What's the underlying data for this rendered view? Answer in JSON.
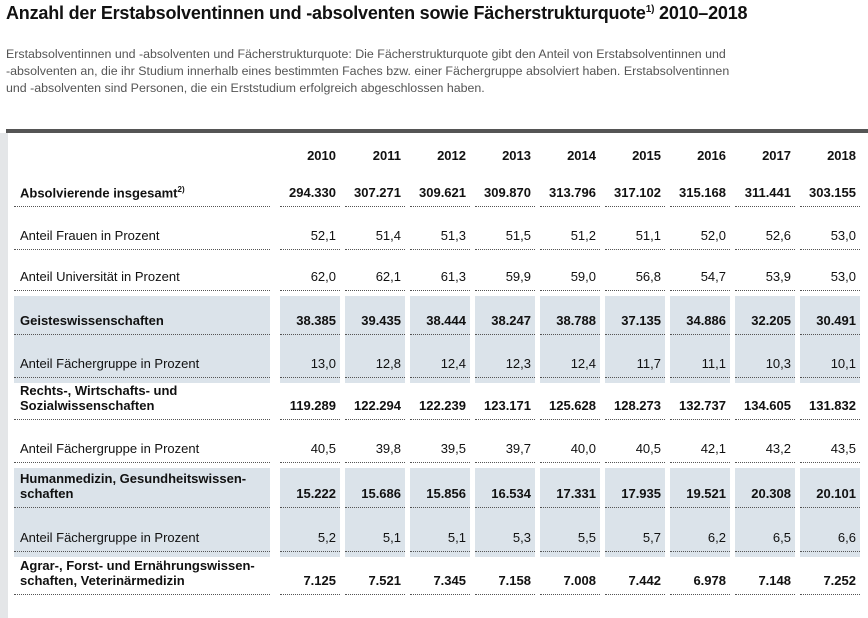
{
  "title": {
    "text": "Anzahl der Erstabsolventinnen und -absolventen sowie Fächerstrukturquote",
    "footnote": "1)",
    "years": "2010–2018"
  },
  "description": [
    "Erstabsolventinnen und -absolventen und Fächerstrukturquote: Die Fächerstrukturquote gibt den Anteil von Erstabsolventinnen und",
    "-absolventen an, die ihr Studium innerhalb eines bestimmten Faches bzw. einer Fächergruppe absolviert haben. Erstabsolventinnen",
    "und -absolventen sind Personen, die ein Erststudium erfolgreich abgeschlossen haben."
  ],
  "table": {
    "columns": [
      "2010",
      "2011",
      "2012",
      "2013",
      "2014",
      "2015",
      "2016",
      "2017",
      "2018"
    ],
    "rows": [
      {
        "lines": [
          "Absolvierende insgesamt"
        ],
        "footnote": "2)",
        "values": [
          "294.330",
          "307.271",
          "309.621",
          "309.870",
          "313.796",
          "317.102",
          "315.168",
          "311.441",
          "303.155"
        ]
      },
      {
        "lines": [
          "Anteil Frauen in Prozent"
        ],
        "values": [
          "52,1",
          "51,4",
          "51,3",
          "51,5",
          "51,2",
          "51,1",
          "52,0",
          "52,6",
          "53,0"
        ]
      },
      {
        "lines": [
          "Anteil Universität in Prozent"
        ],
        "values": [
          "62,0",
          "62,1",
          "61,3",
          "59,9",
          "59,0",
          "56,8",
          "54,7",
          "53,9",
          "53,0"
        ]
      },
      {
        "lines": [
          "Geisteswissenschaften"
        ],
        "values": [
          "38.385",
          "39.435",
          "38.444",
          "38.247",
          "38.788",
          "37.135",
          "34.886",
          "32.205",
          "30.491"
        ]
      },
      {
        "lines": [
          "Anteil Fächergruppe in Prozent"
        ],
        "values": [
          "13,0",
          "12,8",
          "12,4",
          "12,3",
          "12,4",
          "11,7",
          "11,1",
          "10,3",
          "10,1"
        ]
      },
      {
        "lines": [
          "Rechts-, Wirtschafts- und",
          "Sozialwissenschaften"
        ],
        "values": [
          "119.289",
          "122.294",
          "122.239",
          "123.171",
          "125.628",
          "128.273",
          "132.737",
          "134.605",
          "131.832"
        ]
      },
      {
        "lines": [
          "Anteil Fächergruppe in Prozent"
        ],
        "values": [
          "40,5",
          "39,8",
          "39,5",
          "39,7",
          "40,0",
          "40,5",
          "42,1",
          "43,2",
          "43,5"
        ]
      },
      {
        "lines": [
          "Humanmedizin, Gesundheitswissen-",
          "schaften"
        ],
        "values": [
          "15.222",
          "15.686",
          "15.856",
          "16.534",
          "17.331",
          "17.935",
          "19.521",
          "20.308",
          "20.101"
        ]
      },
      {
        "lines": [
          "Anteil Fächergruppe in Prozent"
        ],
        "values": [
          "5,2",
          "5,1",
          "5,1",
          "5,3",
          "5,5",
          "5,7",
          "6,2",
          "6,5",
          "6,6"
        ]
      },
      {
        "lines": [
          "Agrar-, Forst- und Ernährungswissen-",
          "schaften, Veterinärmedizin"
        ],
        "values": [
          "7.125",
          "7.521",
          "7.345",
          "7.158",
          "7.008",
          "7.442",
          "6.978",
          "7.148",
          "7.252"
        ]
      }
    ]
  }
}
